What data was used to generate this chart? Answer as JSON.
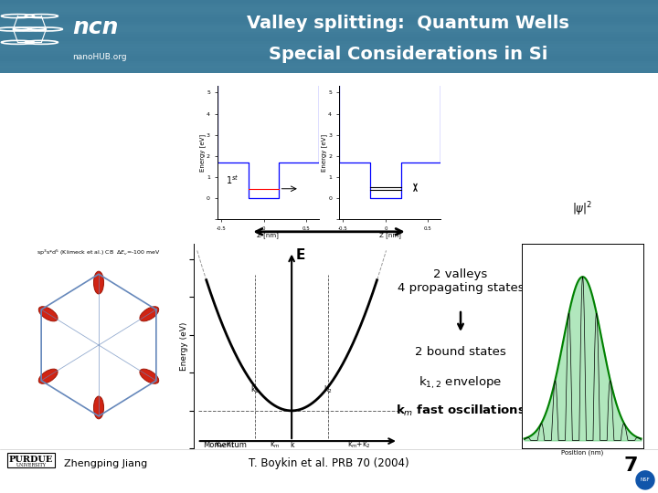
{
  "title_line1": "Valley splitting:  Quantum Wells",
  "title_line2": "Special Considerations in Si",
  "header_bg": "#4a8aaa",
  "bg_color": "#ffffff",
  "footer_author": "Zhengping Jiang",
  "footer_page": "7",
  "citation": "T. Boykin et al. PRB 70 (2004)",
  "figsize": [
    7.2,
    5.4
  ],
  "dpi": 100
}
